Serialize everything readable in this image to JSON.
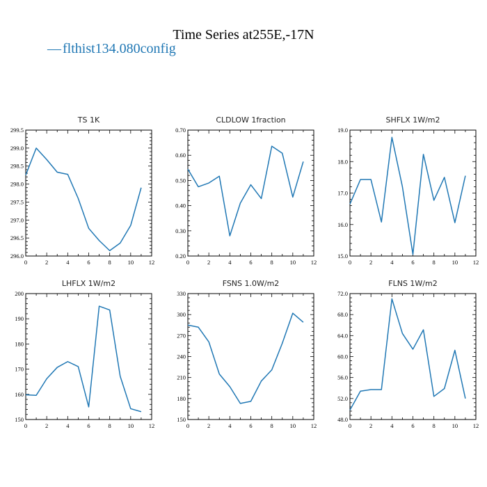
{
  "figure": {
    "title": "Time Series at255E,-17N",
    "legend": {
      "line_symbol": "—",
      "label": "flthist134.080config",
      "color": "#1f77b4"
    }
  },
  "chart_data": [
    {
      "type": "line",
      "title": "TS   1K",
      "x": [
        0,
        1,
        2,
        3,
        4,
        5,
        6,
        7,
        8,
        9,
        10,
        11
      ],
      "series": [
        {
          "values": [
            298.25,
            299.0,
            298.68,
            298.33,
            298.27,
            297.6,
            296.77,
            296.43,
            296.15,
            296.36,
            296.85,
            297.9
          ]
        }
      ],
      "xlim": [
        0,
        12
      ],
      "ylim": [
        296.0,
        299.5
      ],
      "xticks": [
        0,
        2,
        4,
        6,
        8,
        10,
        12
      ],
      "xtick_labels": [
        "0",
        "2",
        "4",
        "6",
        "8",
        "10",
        "12"
      ],
      "yticks": [
        296.0,
        296.5,
        297.0,
        297.5,
        298.0,
        298.5,
        299.0,
        299.5
      ],
      "ytick_labels": [
        "296.0",
        "296.5",
        "297.0",
        "297.5",
        "298.0",
        "298.5",
        "299.0",
        "299.5"
      ]
    },
    {
      "type": "line",
      "title": "CLDLOW   1fraction",
      "x": [
        0,
        1,
        2,
        3,
        4,
        5,
        6,
        7,
        8,
        9,
        10,
        11
      ],
      "series": [
        {
          "values": [
            0.545,
            0.475,
            0.49,
            0.517,
            0.28,
            0.41,
            0.483,
            0.428,
            0.636,
            0.608,
            0.434,
            0.575
          ]
        }
      ],
      "xlim": [
        0,
        12
      ],
      "ylim": [
        0.2,
        0.7
      ],
      "xticks": [
        0,
        2,
        4,
        6,
        8,
        10,
        12
      ],
      "xtick_labels": [
        "0",
        "2",
        "4",
        "6",
        "8",
        "10",
        "12"
      ],
      "yticks": [
        0.2,
        0.3,
        0.4,
        0.5,
        0.6,
        0.7
      ],
      "ytick_labels": [
        "0.20",
        "0.30",
        "0.40",
        "0.50",
        "0.60",
        "0.70"
      ]
    },
    {
      "type": "line",
      "title": "SHFLX   1W/m2",
      "x": [
        0,
        1,
        2,
        3,
        4,
        5,
        6,
        7,
        8,
        9,
        10,
        11
      ],
      "series": [
        {
          "values": [
            16.65,
            17.43,
            17.43,
            16.08,
            18.77,
            17.2,
            15.05,
            18.23,
            16.77,
            17.5,
            16.06,
            17.55
          ]
        }
      ],
      "xlim": [
        0,
        12
      ],
      "ylim": [
        15.0,
        19.0
      ],
      "xticks": [
        0,
        2,
        4,
        6,
        8,
        10,
        12
      ],
      "xtick_labels": [
        "0",
        "2",
        "4",
        "6",
        "8",
        "10",
        "12"
      ],
      "yticks": [
        15.0,
        16.0,
        17.0,
        18.0,
        19.0
      ],
      "ytick_labels": [
        "15.0",
        "16.0",
        "17.0",
        "18.0",
        "19.0"
      ]
    },
    {
      "type": "line",
      "title": "LHFLX   1W/m2",
      "x": [
        0,
        1,
        2,
        3,
        4,
        5,
        6,
        7,
        8,
        9,
        10,
        11
      ],
      "series": [
        {
          "values": [
            159.8,
            159.6,
            166.2,
            170.7,
            173.0,
            171.0,
            155.0,
            195.0,
            193.5,
            167.2,
            154.3,
            153.1
          ]
        }
      ],
      "xlim": [
        0,
        12
      ],
      "ylim": [
        150,
        200
      ],
      "xticks": [
        0,
        2,
        4,
        6,
        8,
        10,
        12
      ],
      "xtick_labels": [
        "0",
        "2",
        "4",
        "6",
        "8",
        "10",
        "12"
      ],
      "yticks": [
        150,
        160,
        170,
        180,
        190,
        200
      ],
      "ytick_labels": [
        "150",
        "160",
        "170",
        "180",
        "190",
        "200"
      ]
    },
    {
      "type": "line",
      "title": "FSNS   1.0W/m2",
      "x": [
        0,
        1,
        2,
        3,
        4,
        5,
        6,
        7,
        8,
        9,
        10,
        11
      ],
      "series": [
        {
          "values": [
            285,
            282,
            261,
            215,
            197,
            173,
            176,
            205,
            221,
            259,
            302,
            289
          ]
        }
      ],
      "xlim": [
        0,
        12
      ],
      "ylim": [
        150,
        330
      ],
      "xticks": [
        0,
        2,
        4,
        6,
        8,
        10,
        12
      ],
      "xtick_labels": [
        "0",
        "2",
        "4",
        "6",
        "8",
        "10",
        "12"
      ],
      "yticks": [
        150,
        180,
        210,
        240,
        270,
        300,
        330
      ],
      "ytick_labels": [
        "150",
        "180",
        "210",
        "240",
        "270",
        "300",
        "330"
      ]
    },
    {
      "type": "line",
      "title": "FLNS   1W/m2",
      "x": [
        0,
        1,
        2,
        3,
        4,
        5,
        6,
        7,
        8,
        9,
        10,
        11
      ],
      "series": [
        {
          "values": [
            49.8,
            53.4,
            53.7,
            53.7,
            71.0,
            64.4,
            61.4,
            65.1,
            52.4,
            53.9,
            61.2,
            52.0
          ]
        }
      ],
      "xlim": [
        0,
        12
      ],
      "ylim": [
        48.0,
        72.0
      ],
      "xticks": [
        0,
        2,
        4,
        6,
        8,
        10,
        12
      ],
      "xtick_labels": [
        "0",
        "2",
        "4",
        "6",
        "8",
        "10",
        "12"
      ],
      "yticks": [
        48.0,
        52.0,
        56.0,
        60.0,
        64.0,
        68.0,
        72.0
      ],
      "ytick_labels": [
        "48.0",
        "52.0",
        "56.0",
        "60.0",
        "64.0",
        "68.0",
        "72.0"
      ]
    }
  ]
}
